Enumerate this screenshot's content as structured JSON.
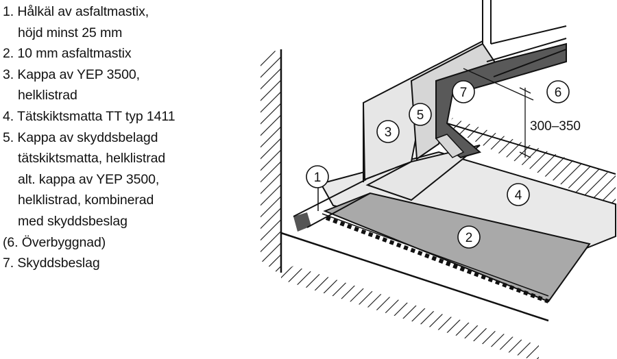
{
  "legend": [
    {
      "text": "1. Hålkäl av asfaltmastix",
      "cont": "höjd minst 25 mm"
    },
    {
      "text": "2. 10 mm asfaltmastix"
    },
    {
      "text": "3. Kappa av YEP 3500,",
      "cont": "helklistrad"
    },
    {
      "text": "4. Tätskiktsmatta TT typ 1411"
    },
    {
      "text": "5. Kappa av skyddsbelagd",
      "cont": "tätskiktsmatta, helklistrad"
    },
    {
      "text": "alt. kappa av YEP 3500,",
      "indent": true
    },
    {
      "text": "helklistrad, kombinerad",
      "indent": true
    },
    {
      "text": "med skyddsbeslag",
      "indent": true
    },
    {
      "text": "(6. Överbyggnad)"
    },
    {
      "text": "7. Skyddsbeslag"
    }
  ],
  "callouts": [
    "1",
    "2",
    "3",
    "4",
    "5",
    "6",
    "7"
  ],
  "dimension_label": "300–350",
  "colors": {
    "line": "#111111",
    "mastic_gray": "#a9a9a9",
    "membrane_light": "#e9e9e9",
    "flashing_dark": "#595959",
    "flashing_edge": "#d6d6d6"
  }
}
